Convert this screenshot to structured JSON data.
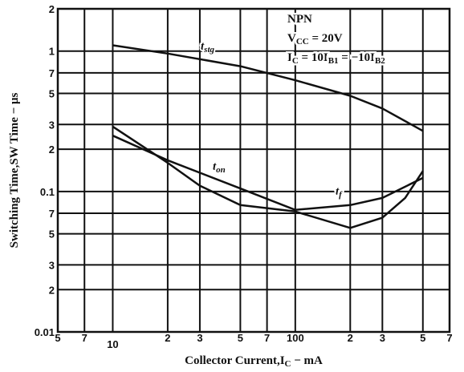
{
  "chart_data": {
    "type": "line",
    "x_label": [
      "Collector Current,I",
      "C",
      " − mA"
    ],
    "y_label": [
      "Switching Time,SW Time − μs"
    ],
    "log_x": true,
    "log_y": true,
    "grid": true,
    "xlim": [
      5,
      700
    ],
    "ylim": [
      0.01,
      2
    ],
    "xticks": [
      5,
      7,
      10,
      {
        "value": 20,
        "label": "2"
      },
      {
        "value": 30,
        "label": "3"
      },
      {
        "value": 50,
        "label": "5"
      },
      {
        "value": 70,
        "label": "7"
      },
      100,
      {
        "value": 200,
        "label": "2"
      },
      {
        "value": 300,
        "label": "3"
      },
      {
        "value": 500,
        "label": "5"
      },
      {
        "value": 700,
        "label": "7"
      }
    ],
    "yticks": [
      0.01,
      {
        "value": 0.02,
        "label": "2"
      },
      {
        "value": 0.03,
        "label": "3"
      },
      {
        "value": 0.05,
        "label": "5"
      },
      {
        "value": 0.07,
        "label": "7"
      },
      0.1,
      {
        "value": 0.2,
        "label": "2"
      },
      {
        "value": 0.3,
        "label": "3"
      },
      {
        "value": 0.5,
        "label": "5"
      },
      {
        "value": 0.7,
        "label": "7"
      },
      1,
      2
    ],
    "series": [
      {
        "label": [
          "t",
          "stg"
        ],
        "color": "#111111",
        "x": [
          10,
          20,
          50,
          100,
          200,
          300,
          500
        ],
        "values": [
          1.1,
          0.96,
          0.78,
          0.62,
          0.48,
          0.39,
          0.27
        ]
      },
      {
        "label": [
          "t",
          "on"
        ],
        "color": "#111111",
        "x": [
          10,
          20,
          50,
          100,
          200,
          300,
          500
        ],
        "values": [
          0.25,
          0.167,
          0.105,
          0.074,
          0.08,
          0.09,
          0.125
        ]
      },
      {
        "label": [
          "t",
          "f"
        ],
        "color": "#111111",
        "x": [
          10,
          20,
          30,
          50,
          100,
          200,
          300,
          400,
          500
        ],
        "values": [
          0.29,
          0.16,
          0.11,
          0.08,
          0.072,
          0.055,
          0.065,
          0.09,
          0.14
        ]
      }
    ],
    "annotations": [
      [
        "NPN"
      ],
      [
        "V",
        "CC",
        " = 20V"
      ],
      [
        "I",
        "C",
        " = 10I",
        "B1",
        " = −10I",
        "B2"
      ]
    ]
  }
}
